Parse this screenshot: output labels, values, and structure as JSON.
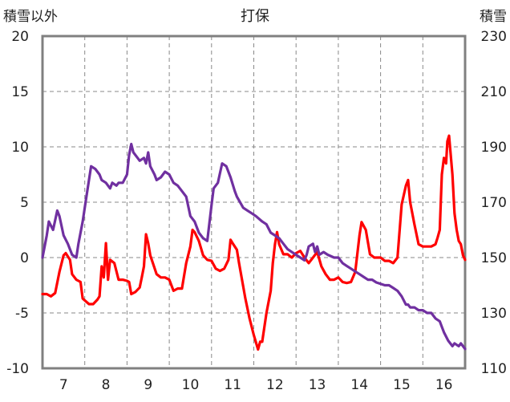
{
  "chart_data": {
    "type": "line",
    "title": "打保",
    "left_axis_label": "積雪以外",
    "right_axis_label": "積雪",
    "y_left": {
      "min": -10,
      "max": 20,
      "ticks": [
        20,
        15,
        10,
        5,
        0,
        -5,
        -10
      ]
    },
    "y_right": {
      "min": 110,
      "max": 230,
      "ticks": [
        230,
        210,
        190,
        170,
        150,
        130,
        110
      ]
    },
    "x": {
      "min": 6.5,
      "max": 16.5,
      "ticks": [
        7,
        8,
        9,
        10,
        11,
        12,
        13,
        14,
        15,
        16
      ],
      "tick_labels": [
        "7",
        "8",
        "9",
        "10",
        "11",
        "12",
        "13",
        "14",
        "15",
        "16"
      ]
    },
    "grid": {
      "vertical_dashed_at_half_days": true,
      "horizontal_dashed": true
    },
    "series": [
      {
        "axis": "left",
        "color": "#ff0000",
        "points": [
          [
            6.5,
            -3.3
          ],
          [
            6.6,
            -3.3
          ],
          [
            6.7,
            -3.5
          ],
          [
            6.8,
            -3.2
          ],
          [
            6.9,
            -1.3
          ],
          [
            7.0,
            0.2
          ],
          [
            7.05,
            0.4
          ],
          [
            7.15,
            -0.2
          ],
          [
            7.2,
            -1.5
          ],
          [
            7.3,
            -2.0
          ],
          [
            7.4,
            -2.2
          ],
          [
            7.45,
            -3.7
          ],
          [
            7.6,
            -4.2
          ],
          [
            7.7,
            -4.2
          ],
          [
            7.8,
            -3.8
          ],
          [
            7.85,
            -3.5
          ],
          [
            7.9,
            -0.8
          ],
          [
            7.95,
            -1.8
          ],
          [
            8.0,
            1.3
          ],
          [
            8.05,
            -2.0
          ],
          [
            8.1,
            -0.2
          ],
          [
            8.2,
            -0.5
          ],
          [
            8.3,
            -2.0
          ],
          [
            8.4,
            -2.0
          ],
          [
            8.5,
            -2.1
          ],
          [
            8.55,
            -2.2
          ],
          [
            8.6,
            -3.3
          ],
          [
            8.7,
            -3.1
          ],
          [
            8.8,
            -2.7
          ],
          [
            8.85,
            -1.8
          ],
          [
            8.9,
            -0.8
          ],
          [
            8.95,
            2.1
          ],
          [
            9.0,
            1.3
          ],
          [
            9.05,
            0.2
          ],
          [
            9.2,
            -1.5
          ],
          [
            9.3,
            -1.8
          ],
          [
            9.4,
            -1.8
          ],
          [
            9.5,
            -2.0
          ],
          [
            9.6,
            -3.0
          ],
          [
            9.7,
            -2.8
          ],
          [
            9.8,
            -2.8
          ],
          [
            9.9,
            -0.5
          ],
          [
            10.0,
            1.0
          ],
          [
            10.05,
            2.5
          ],
          [
            10.1,
            2.3
          ],
          [
            10.2,
            1.5
          ],
          [
            10.3,
            0.2
          ],
          [
            10.4,
            -0.2
          ],
          [
            10.5,
            -0.3
          ],
          [
            10.6,
            -1.0
          ],
          [
            10.7,
            -1.2
          ],
          [
            10.8,
            -1.0
          ],
          [
            10.9,
            -0.2
          ],
          [
            10.95,
            1.6
          ],
          [
            11.0,
            1.3
          ],
          [
            11.1,
            0.7
          ],
          [
            11.15,
            -0.5
          ],
          [
            11.3,
            -3.7
          ],
          [
            11.4,
            -5.5
          ],
          [
            11.5,
            -7.0
          ],
          [
            11.6,
            -8.3
          ],
          [
            11.65,
            -7.6
          ],
          [
            11.7,
            -7.6
          ],
          [
            11.8,
            -5.0
          ],
          [
            11.9,
            -3.0
          ],
          [
            11.95,
            -0.5
          ],
          [
            12.0,
            1.2
          ],
          [
            12.05,
            2.3
          ],
          [
            12.1,
            1.2
          ],
          [
            12.2,
            0.3
          ],
          [
            12.3,
            0.3
          ],
          [
            12.4,
            0.0
          ],
          [
            12.5,
            0.4
          ],
          [
            12.6,
            0.6
          ],
          [
            12.7,
            0.0
          ],
          [
            12.8,
            -0.5
          ],
          [
            12.9,
            0.0
          ],
          [
            13.0,
            0.5
          ],
          [
            13.1,
            -0.8
          ],
          [
            13.2,
            -1.5
          ],
          [
            13.3,
            -2.0
          ],
          [
            13.4,
            -2.0
          ],
          [
            13.5,
            -1.8
          ],
          [
            13.6,
            -2.2
          ],
          [
            13.7,
            -2.3
          ],
          [
            13.8,
            -2.2
          ],
          [
            13.9,
            -1.3
          ],
          [
            14.0,
            2.0
          ],
          [
            14.05,
            3.2
          ],
          [
            14.15,
            2.5
          ],
          [
            14.25,
            0.3
          ],
          [
            14.35,
            0.0
          ],
          [
            14.5,
            0.0
          ],
          [
            14.6,
            -0.3
          ],
          [
            14.7,
            -0.3
          ],
          [
            14.8,
            -0.5
          ],
          [
            14.9,
            0.0
          ],
          [
            15.0,
            4.8
          ],
          [
            15.1,
            6.5
          ],
          [
            15.15,
            7.0
          ],
          [
            15.2,
            5.0
          ],
          [
            15.3,
            3.0
          ],
          [
            15.4,
            1.2
          ],
          [
            15.5,
            1.0
          ],
          [
            15.6,
            1.0
          ],
          [
            15.7,
            1.0
          ],
          [
            15.8,
            1.2
          ],
          [
            15.85,
            1.8
          ],
          [
            15.9,
            2.5
          ],
          [
            15.95,
            7.5
          ],
          [
            16.0,
            9.0
          ],
          [
            16.05,
            8.5
          ],
          [
            16.08,
            10.5
          ],
          [
            16.12,
            11.0
          ],
          [
            16.2,
            7.5
          ],
          [
            16.25,
            4.0
          ],
          [
            16.3,
            2.5
          ],
          [
            16.35,
            1.5
          ],
          [
            16.4,
            1.2
          ],
          [
            16.45,
            0.2
          ],
          [
            16.5,
            -0.2
          ]
        ]
      },
      {
        "axis": "right",
        "color": "#7030a0",
        "points": [
          [
            6.5,
            150
          ],
          [
            6.6,
            158
          ],
          [
            6.65,
            163
          ],
          [
            6.75,
            160
          ],
          [
            6.85,
            167
          ],
          [
            6.9,
            165
          ],
          [
            7.0,
            158
          ],
          [
            7.1,
            155
          ],
          [
            7.2,
            151
          ],
          [
            7.3,
            150
          ],
          [
            7.35,
            155
          ],
          [
            7.45,
            163
          ],
          [
            7.55,
            173
          ],
          [
            7.65,
            183
          ],
          [
            7.75,
            182
          ],
          [
            7.85,
            180
          ],
          [
            7.9,
            178
          ],
          [
            8.0,
            177
          ],
          [
            8.1,
            175
          ],
          [
            8.15,
            177
          ],
          [
            8.25,
            176
          ],
          [
            8.3,
            177
          ],
          [
            8.4,
            177
          ],
          [
            8.5,
            180
          ],
          [
            8.55,
            187
          ],
          [
            8.6,
            191
          ],
          [
            8.65,
            188
          ],
          [
            8.75,
            186
          ],
          [
            8.8,
            185
          ],
          [
            8.9,
            186
          ],
          [
            8.95,
            184
          ],
          [
            9.0,
            188
          ],
          [
            9.05,
            183
          ],
          [
            9.15,
            180
          ],
          [
            9.2,
            178
          ],
          [
            9.3,
            179
          ],
          [
            9.4,
            181
          ],
          [
            9.5,
            180
          ],
          [
            9.6,
            177
          ],
          [
            9.7,
            176
          ],
          [
            9.8,
            174
          ],
          [
            9.9,
            172
          ],
          [
            10.0,
            165
          ],
          [
            10.1,
            163
          ],
          [
            10.2,
            159
          ],
          [
            10.3,
            157
          ],
          [
            10.4,
            156
          ],
          [
            10.5,
            169
          ],
          [
            10.55,
            175
          ],
          [
            10.65,
            177
          ],
          [
            10.75,
            184
          ],
          [
            10.85,
            183
          ],
          [
            10.95,
            179
          ],
          [
            11.05,
            174
          ],
          [
            11.1,
            172
          ],
          [
            11.25,
            168
          ],
          [
            11.35,
            167
          ],
          [
            11.45,
            166
          ],
          [
            11.55,
            165
          ],
          [
            11.7,
            163
          ],
          [
            11.8,
            162
          ],
          [
            11.9,
            159
          ],
          [
            12.0,
            158
          ],
          [
            12.1,
            157
          ],
          [
            12.2,
            155
          ],
          [
            12.3,
            153
          ],
          [
            12.4,
            152
          ],
          [
            12.5,
            151
          ],
          [
            12.6,
            150
          ],
          [
            12.7,
            149
          ],
          [
            12.75,
            151
          ],
          [
            12.8,
            154
          ],
          [
            12.9,
            155
          ],
          [
            12.95,
            152
          ],
          [
            13.0,
            154
          ],
          [
            13.05,
            151
          ],
          [
            13.15,
            152
          ],
          [
            13.25,
            151
          ],
          [
            13.4,
            150
          ],
          [
            13.5,
            150
          ],
          [
            13.6,
            148
          ],
          [
            13.7,
            147
          ],
          [
            13.8,
            146
          ],
          [
            13.9,
            145
          ],
          [
            14.0,
            144
          ],
          [
            14.1,
            143
          ],
          [
            14.2,
            142
          ],
          [
            14.3,
            142
          ],
          [
            14.4,
            141
          ],
          [
            14.6,
            140
          ],
          [
            14.7,
            140
          ],
          [
            14.8,
            139
          ],
          [
            14.9,
            138
          ],
          [
            15.0,
            136
          ],
          [
            15.1,
            133
          ],
          [
            15.15,
            133
          ],
          [
            15.2,
            132
          ],
          [
            15.3,
            132
          ],
          [
            15.4,
            131
          ],
          [
            15.5,
            131
          ],
          [
            15.6,
            130
          ],
          [
            15.7,
            130
          ],
          [
            15.8,
            128
          ],
          [
            15.9,
            127
          ],
          [
            15.95,
            125
          ],
          [
            16.0,
            123
          ],
          [
            16.1,
            120
          ],
          [
            16.2,
            118
          ],
          [
            16.25,
            119
          ],
          [
            16.35,
            118
          ],
          [
            16.4,
            119
          ],
          [
            16.5,
            117
          ]
        ]
      }
    ]
  }
}
